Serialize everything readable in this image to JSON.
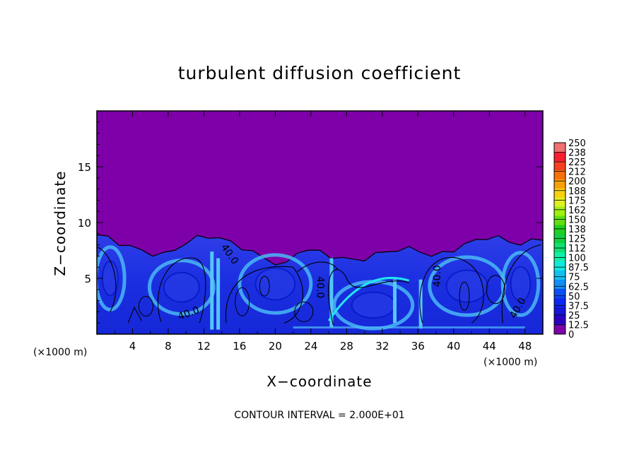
{
  "chart_data": {
    "type": "heatmap",
    "title": "turbulent diffusion coefficient",
    "xlabel": "X−coordinate",
    "ylabel": "Z−coordinate",
    "x_unit_left": "(×1000 m)",
    "x_unit_right": "(×1000 m)",
    "xlim": [
      0,
      50
    ],
    "ylim": [
      0,
      20
    ],
    "x_ticks": [
      "4",
      "8",
      "12",
      "16",
      "20",
      "24",
      "28",
      "32",
      "36",
      "40",
      "44",
      "48"
    ],
    "y_ticks": [
      "5",
      "10",
      "15"
    ],
    "colorbar_ticks": [
      "0",
      "12.5",
      "25",
      "37.5",
      "50",
      "62.5",
      "75",
      "87.5",
      "100",
      "112",
      "125",
      "138",
      "150",
      "162",
      "175",
      "188",
      "200",
      "212",
      "225",
      "238",
      "250"
    ],
    "colorbar_range": [
      0,
      250
    ],
    "colorbar_colors": [
      "#7d00a8",
      "#2c00c0",
      "#1515d8",
      "#0a28f0",
      "#0a50f8",
      "#1090f8",
      "#10c0f0",
      "#10e8e0",
      "#10f0a8",
      "#10e070",
      "#10d040",
      "#20d020",
      "#60e010",
      "#a0f010",
      "#e0f020",
      "#f8d010",
      "#f8a008",
      "#f87008",
      "#f84020",
      "#f82030",
      "#f07070"
    ],
    "background_value": 0,
    "turbulent_layer_top_z": [
      8.9,
      8.6,
      8.2,
      7.8,
      7.5,
      7.2,
      7.1,
      7.6,
      8.2,
      8.6,
      8.8,
      8.6,
      8.2,
      7.8,
      7.3,
      6.8,
      6.4,
      6.2,
      7.4,
      7.6,
      7.3,
      7.0,
      6.8,
      6.6,
      6.8,
      7.1,
      7.4,
      7.6,
      7.6,
      7.5,
      7.0,
      7.2,
      7.6,
      8.0,
      8.4,
      8.7,
      8.6,
      8.3,
      8.1,
      8.3,
      8.6
    ],
    "contour_labels": [
      "40.0",
      "40.0",
      "40.0",
      "40.0",
      "40.0",
      "40.0"
    ],
    "contour_level": 40.0,
    "contour_interval_text": "CONTOUR INTERVAL = 2.000E+01"
  }
}
